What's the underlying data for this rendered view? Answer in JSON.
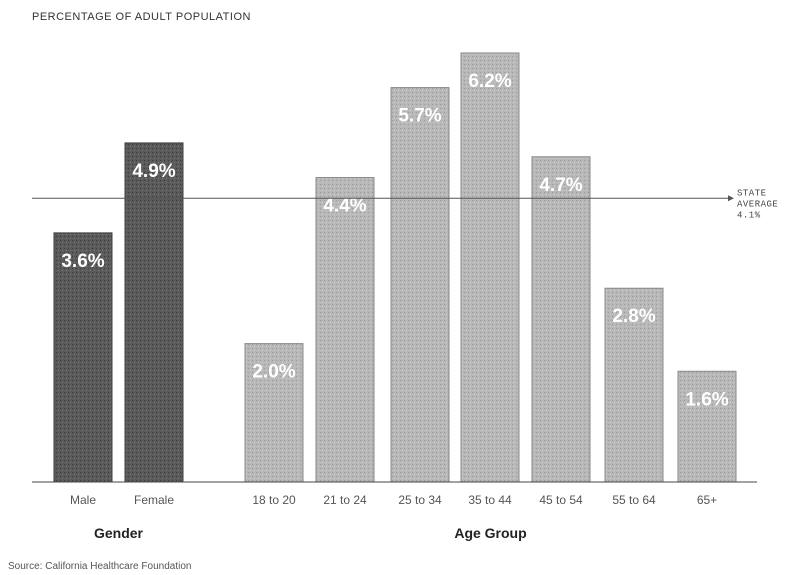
{
  "chart_data": {
    "type": "bar",
    "title": "PERCENTAGE OF ADULT POPULATION",
    "ylim": [
      0,
      6.6
    ],
    "categories": [
      "Male",
      "Female",
      "18 to 20",
      "21 to 24",
      "25 to 34",
      "35 to 44",
      "45 to 54",
      "55 to 64",
      "65+"
    ],
    "values": [
      3.6,
      4.9,
      2.0,
      4.4,
      5.7,
      6.2,
      4.7,
      2.8,
      1.6
    ],
    "value_labels": [
      "3.6%",
      "4.9%",
      "2.0%",
      "4.4%",
      "5.7%",
      "6.2%",
      "4.7%",
      "2.8%",
      "1.6%"
    ],
    "groups": [
      {
        "name": "Gender",
        "categories": [
          "Male",
          "Female"
        ],
        "color": "#595959"
      },
      {
        "name": "Age Group",
        "categories": [
          "18 to 20",
          "21 to 24",
          "25 to 34",
          "35 to 44",
          "45 to 54",
          "55 to 64",
          "65+"
        ],
        "color": "#b3b3b3"
      }
    ],
    "reference_line": {
      "value": 4.1,
      "label_lines": [
        "STATE",
        "AVERAGE",
        "4.1%"
      ]
    },
    "source": "Source: California Healthcare Foundation"
  }
}
